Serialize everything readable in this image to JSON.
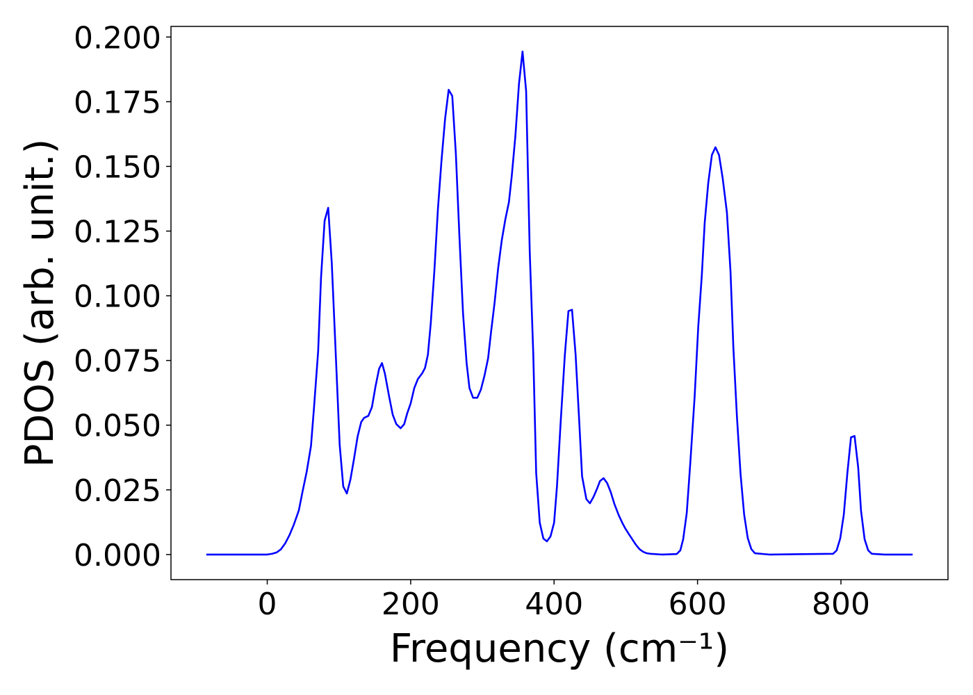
{
  "chart_data": {
    "type": "line",
    "x_label": "Frequency (cm⁻¹)",
    "y_label": "PDOS (arb. unit.)",
    "x": [
      -85,
      -50,
      0,
      7,
      13,
      19,
      25,
      31,
      37,
      44,
      49,
      55,
      61,
      65,
      71,
      75,
      80,
      85,
      90,
      96,
      101,
      106,
      111,
      116,
      121,
      126,
      131,
      135,
      141,
      146,
      151,
      156,
      160,
      164,
      170,
      175,
      180,
      186,
      191,
      195,
      200,
      205,
      210,
      216,
      220,
      224,
      228,
      233,
      238,
      243,
      248,
      253,
      258,
      263,
      268,
      273,
      278,
      282,
      287,
      293,
      298,
      303,
      308,
      312,
      317,
      322,
      327,
      332,
      337,
      341,
      346,
      351,
      356,
      361,
      366,
      371,
      375,
      380,
      385,
      390,
      395,
      400,
      404,
      409,
      415,
      420,
      425,
      430,
      435,
      439,
      445,
      450,
      455,
      460,
      464,
      469,
      474,
      479,
      484,
      490,
      495,
      499,
      504,
      509,
      514,
      519,
      524,
      529,
      534,
      550,
      571,
      576,
      580,
      585,
      590,
      596,
      601,
      606,
      610,
      615,
      620,
      625,
      630,
      635,
      641,
      646,
      650,
      655,
      660,
      665,
      670,
      675,
      680,
      700,
      789,
      794,
      799,
      804,
      809,
      814,
      819,
      824,
      828,
      833,
      838,
      843,
      860,
      900
    ],
    "series": [
      {
        "color": "#0000ff",
        "values": [
          0,
          0,
          0,
          0.0003,
          0.0008,
          0.002,
          0.0043,
          0.0075,
          0.0115,
          0.017,
          0.024,
          0.032,
          0.042,
          0.056,
          0.0786,
          0.107,
          0.129,
          0.134,
          0.1126,
          0.0745,
          0.0424,
          0.0263,
          0.0236,
          0.029,
          0.037,
          0.0456,
          0.0512,
          0.0528,
          0.0536,
          0.057,
          0.065,
          0.0718,
          0.074,
          0.07,
          0.061,
          0.054,
          0.0504,
          0.0488,
          0.0504,
          0.0544,
          0.0584,
          0.0643,
          0.0678,
          0.07,
          0.0721,
          0.0772,
          0.0893,
          0.1094,
          0.1335,
          0.1523,
          0.1684,
          0.1796,
          0.1772,
          0.155,
          0.1228,
          0.0933,
          0.074,
          0.0643,
          0.0606,
          0.0606,
          0.0638,
          0.0692,
          0.0759,
          0.0858,
          0.0973,
          0.1107,
          0.1214,
          0.1295,
          0.1362,
          0.1464,
          0.1617,
          0.1818,
          0.1944,
          0.1791,
          0.1174,
          0.0772,
          0.0316,
          0.0123,
          0.0062,
          0.0051,
          0.007,
          0.0123,
          0.0263,
          0.0504,
          0.0772,
          0.0941,
          0.0946,
          0.0772,
          0.0517,
          0.0303,
          0.0214,
          0.0198,
          0.0223,
          0.0255,
          0.0284,
          0.0295,
          0.0276,
          0.0241,
          0.0196,
          0.0153,
          0.0123,
          0.0102,
          0.008,
          0.0059,
          0.0038,
          0.0021,
          0.0011,
          0.0005,
          0.0003,
          0,
          0.0002,
          0.0016,
          0.0059,
          0.0161,
          0.0357,
          0.0611,
          0.0879,
          0.108,
          0.1282,
          0.1437,
          0.1544,
          0.1574,
          0.1544,
          0.1456,
          0.1322,
          0.1094,
          0.0799,
          0.0531,
          0.0311,
          0.0155,
          0.0064,
          0.0021,
          0.0005,
          0,
          0.0003,
          0.0016,
          0.0062,
          0.0155,
          0.0316,
          0.0453,
          0.0458,
          0.0338,
          0.0169,
          0.0059,
          0.0016,
          0.0003,
          0,
          0
        ]
      }
    ],
    "xlim": [
      -134.25,
      949.25
    ],
    "ylim": [
      -0.0097,
      0.2041
    ],
    "xticks": [
      0,
      200,
      400,
      600,
      800
    ],
    "yticks": [
      {
        "value": 0,
        "label": "0.000"
      },
      {
        "value": 0.025,
        "label": "0.025"
      },
      {
        "value": 0.05,
        "label": "0.050"
      },
      {
        "value": 0.075,
        "label": "0.075"
      },
      {
        "value": 0.1,
        "label": "0.100"
      },
      {
        "value": 0.125,
        "label": "0.125"
      },
      {
        "value": 0.15,
        "label": "0.150"
      },
      {
        "value": 0.175,
        "label": "0.175"
      },
      {
        "value": 0.2,
        "label": "0.200"
      }
    ],
    "grid": false
  }
}
